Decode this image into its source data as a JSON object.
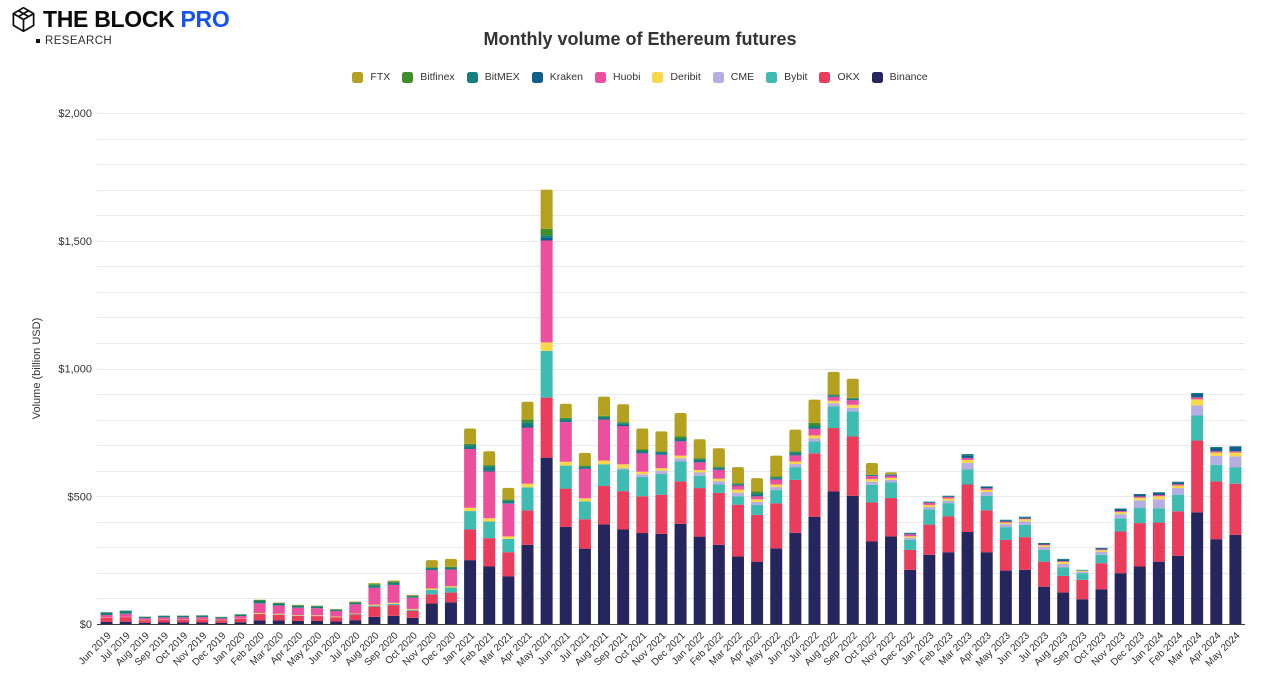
{
  "brand": {
    "name": "THE BLOCK",
    "pro": "PRO",
    "research": "RESEARCH"
  },
  "title": "Monthly volume of Ethereum futures",
  "chart_data": {
    "type": "bar",
    "stacked": true,
    "title": "Monthly volume of Ethereum futures",
    "ylabel": "Volume (billion USD)",
    "ylim": [
      0,
      2000
    ],
    "ytick_step": 500,
    "grid_step": 100,
    "grid": true,
    "legend_position": "top",
    "ytick_labels": [
      "$0",
      "$500",
      "$1,000",
      "$1,500",
      "$2,000"
    ],
    "categories": [
      "Jun 2019",
      "Jul 2019",
      "Aug 2019",
      "Sep 2019",
      "Oct 2019",
      "Nov 2019",
      "Dec 2019",
      "Jan 2020",
      "Feb 2020",
      "Mar 2020",
      "Apr 2020",
      "May 2020",
      "Jun 2020",
      "Jul 2020",
      "Aug 2020",
      "Sep 2020",
      "Oct 2020",
      "Nov 2020",
      "Dec 2020",
      "Jan 2021",
      "Feb 2021",
      "Mar 2021",
      "Apr 2021",
      "May 2021",
      "Jun 2021",
      "Jul 2021",
      "Aug 2021",
      "Sep 2021",
      "Oct 2021",
      "Nov 2021",
      "Dec 2021",
      "Jan 2022",
      "Feb 2022",
      "Mar 2022",
      "Apr 2022",
      "May 2022",
      "Jun 2022",
      "Jul 2022",
      "Aug 2022",
      "Sep 2022",
      "Oct 2022",
      "Nov 2022",
      "Dec 2022",
      "Jan 2023",
      "Feb 2023",
      "Mar 2023",
      "Apr 2023",
      "May 2023",
      "Jun 2023",
      "Jul 2023",
      "Aug 2023",
      "Sep 2023",
      "Oct 2023",
      "Nov 2023",
      "Dec 2023",
      "Jan 2024",
      "Feb 2024",
      "Mar 2024",
      "Apr 2024",
      "May 2024"
    ],
    "legend_order": [
      "FTX",
      "Bitfinex",
      "BitMEX",
      "Kraken",
      "Huobi",
      "Deribit",
      "CME",
      "Bybit",
      "OKX",
      "Binance"
    ],
    "series": [
      {
        "name": "Binance",
        "color": "#26265e",
        "values": [
          8,
          9,
          5,
          6,
          6,
          6,
          5,
          7,
          14,
          14,
          12,
          12,
          10,
          15,
          28,
          32,
          24,
          80,
          85,
          250,
          225,
          186,
          310,
          651,
          380,
          295,
          390,
          370,
          356,
          353,
          392,
          342,
          310,
          264,
          244,
          296,
          357,
          420,
          519,
          502,
          323,
          343,
          212,
          271,
          281,
          360,
          281,
          209,
          212,
          146,
          123,
          97,
          136,
          199,
          225,
          244,
          267,
          437,
          332,
          349
        ]
      },
      {
        "name": "OKX",
        "color": "#ea3d5c",
        "values": [
          16,
          18,
          10,
          11,
          11,
          12,
          10,
          13,
          25,
          22,
          20,
          19,
          16,
          22,
          40,
          42,
          28,
          36,
          38,
          120,
          111,
          95,
          135,
          235,
          150,
          115,
          150,
          150,
          144,
          153,
          166,
          190,
          203,
          203,
          183,
          176,
          207,
          248,
          248,
          232,
          153,
          150,
          78,
          118,
          140,
          186,
          164,
          120,
          128,
          98,
          65,
          76,
          102,
          163,
          170,
          153,
          174,
          281,
          226,
          200
        ]
      },
      {
        "name": "Bybit",
        "color": "#3fbcb2",
        "values": [
          0,
          0,
          0,
          0,
          0,
          0,
          0,
          0,
          1,
          1,
          1,
          1,
          1,
          2,
          4,
          5,
          4,
          18,
          20,
          72,
          65,
          52,
          90,
          183,
          90,
          70,
          85,
          85,
          76,
          81,
          78,
          48,
          33,
          33,
          39,
          52,
          50,
          46,
          85,
          98,
          69,
          61,
          39,
          59,
          52,
          59,
          57,
          50,
          48,
          46,
          33,
          26,
          33,
          52,
          59,
          56,
          65,
          98,
          65,
          65
        ]
      },
      {
        "name": "CME",
        "color": "#b4aee2",
        "values": [
          0,
          0,
          0,
          0,
          0,
          0,
          0,
          0,
          0,
          0,
          0,
          0,
          0,
          0,
          0,
          0,
          0,
          0,
          0,
          0,
          0,
          0,
          0,
          0,
          0,
          0,
          0,
          5,
          10,
          13,
          13,
          13,
          13,
          14,
          12,
          12,
          12,
          12,
          12,
          14,
          12,
          10,
          8,
          10,
          10,
          25,
          15,
          12,
          14,
          12,
          14,
          6,
          12,
          16,
          30,
          35,
          26,
          39,
          35,
          42
        ]
      },
      {
        "name": "Deribit",
        "color": "#f8d84a",
        "values": [
          1,
          1,
          1,
          1,
          1,
          1,
          1,
          1,
          3,
          3,
          2,
          2,
          2,
          2,
          4,
          4,
          3,
          5,
          5,
          13,
          13,
          10,
          14,
          33,
          15,
          12,
          15,
          15,
          10,
          10,
          10,
          10,
          10,
          12,
          10,
          10,
          10,
          12,
          10,
          12,
          10,
          8,
          6,
          8,
          8,
          12,
          8,
          6,
          8,
          6,
          8,
          4,
          6,
          8,
          10,
          12,
          10,
          24,
          13,
          15
        ]
      },
      {
        "name": "Huobi",
        "color": "#ec4f9d",
        "values": [
          10,
          12,
          7,
          8,
          8,
          8,
          6,
          10,
          38,
          32,
          29,
          28,
          22,
          36,
          66,
          70,
          44,
          72,
          65,
          230,
          183,
          128,
          220,
          399,
          155,
          115,
          160,
          150,
          72,
          52,
          56,
          30,
          35,
          16,
          12,
          20,
          24,
          26,
          15,
          18,
          12,
          9,
          8,
          8,
          6,
          8,
          6,
          4,
          3,
          3,
          3,
          0,
          3,
          4,
          5,
          5,
          5,
          8,
          5,
          5
        ]
      },
      {
        "name": "Kraken",
        "color": "#0f5e8c",
        "values": [
          0,
          0,
          0,
          0,
          0,
          0,
          0,
          0,
          0,
          0,
          0,
          0,
          0,
          0,
          0,
          0,
          0,
          0,
          0,
          2,
          2,
          2,
          4,
          10,
          4,
          3,
          4,
          4,
          3,
          3,
          3,
          3,
          3,
          3,
          3,
          3,
          3,
          3,
          3,
          3,
          3,
          3,
          4,
          3,
          3,
          10,
          6,
          5,
          5,
          4,
          7,
          2,
          5,
          8,
          8,
          9,
          8,
          15,
          15,
          18
        ]
      },
      {
        "name": "BitMEX",
        "color": "#15807b",
        "values": [
          10,
          12,
          5,
          6,
          6,
          6,
          5,
          6,
          9,
          8,
          7,
          6,
          5,
          6,
          10,
          9,
          6,
          8,
          8,
          13,
          18,
          10,
          16,
          10,
          8,
          6,
          7,
          7,
          8,
          8,
          8,
          8,
          5,
          3,
          8,
          5,
          8,
          10,
          3,
          3,
          2,
          2,
          2,
          2,
          2,
          5,
          2,
          2,
          2,
          2,
          2,
          1,
          1,
          2,
          2,
          2,
          2,
          2,
          2,
          2
        ]
      },
      {
        "name": "Bitfinex",
        "color": "#3e8e29",
        "values": [
          1,
          1,
          1,
          1,
          1,
          1,
          1,
          1,
          4,
          3,
          3,
          3,
          2,
          3,
          4,
          4,
          2,
          3,
          3,
          5,
          5,
          4,
          11,
          26,
          5,
          4,
          4,
          4,
          4,
          3,
          9,
          5,
          4,
          3,
          8,
          4,
          5,
          10,
          3,
          3,
          0,
          0,
          0,
          0,
          0,
          0,
          0,
          0,
          0,
          0,
          0,
          0,
          0,
          0,
          0,
          0,
          0,
          0,
          0,
          0
        ]
      },
      {
        "name": "FTX",
        "color": "#b3a11f",
        "values": [
          0,
          0,
          0,
          0,
          0,
          0,
          0,
          0,
          1,
          1,
          1,
          1,
          1,
          2,
          4,
          4,
          3,
          28,
          31,
          60,
          54,
          46,
          70,
          153,
          55,
          50,
          75,
          70,
          82,
          78,
          91,
          74,
          72,
          63,
          52,
          81,
          85,
          91,
          89,
          75,
          46,
          8,
          0,
          0,
          0,
          0,
          0,
          0,
          0,
          0,
          0,
          0,
          0,
          0,
          0,
          0,
          0,
          0,
          0,
          0
        ]
      }
    ]
  }
}
